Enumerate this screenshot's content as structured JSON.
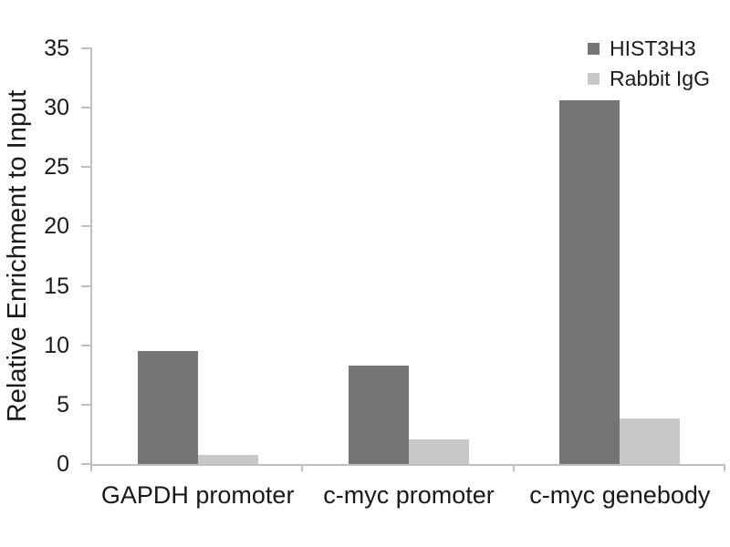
{
  "chart_data": {
    "type": "bar",
    "title": "",
    "categories": [
      "GAPDH promoter",
      "c-myc promoter",
      "c-myc genebody"
    ],
    "series": [
      {
        "name": "HIST3H3",
        "color": "#757575",
        "values": [
          9.5,
          8.3,
          30.6
        ]
      },
      {
        "name": "Rabbit IgG",
        "color": "#c8c8c8",
        "values": [
          0.8,
          2.1,
          3.8
        ]
      }
    ],
    "xlabel": "",
    "ylabel": "Relative Enrichment to Input",
    "ylim": [
      0,
      35
    ],
    "yticks": [
      0,
      5,
      10,
      15,
      20,
      25,
      30,
      35
    ],
    "grid": false,
    "legend_position": "top-right",
    "axis_color": "#c0c0c0",
    "text_color": "#1a1a1a",
    "background": "#ffffff"
  }
}
